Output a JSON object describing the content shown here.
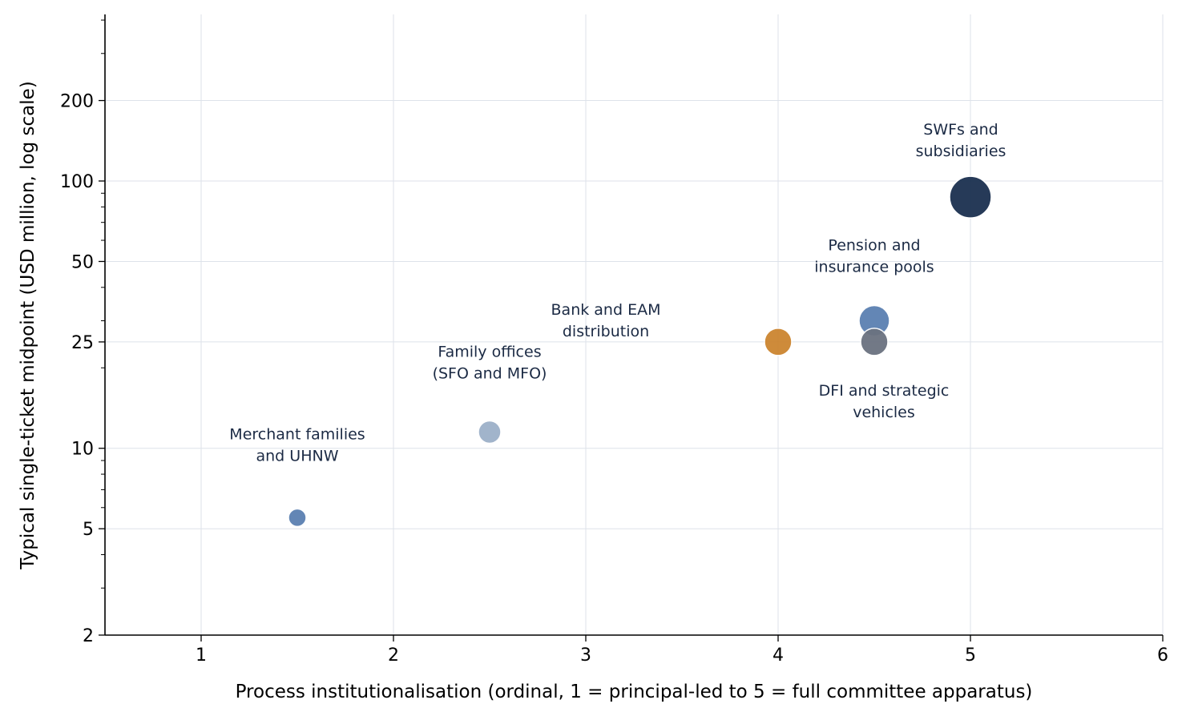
{
  "chart_data": {
    "type": "scatter",
    "title": "",
    "xlabel": "Process institutionalisation (ordinal, 1 = principal-led to 5 = full committee apparatus)",
    "ylabel": "Typical single-ticket midpoint (USD million, log scale)",
    "xlim": [
      0.5,
      6
    ],
    "ylim": [
      2,
      420
    ],
    "yscale": "log",
    "grid": true,
    "x_ticks": [
      "1",
      "2",
      "3",
      "4",
      "5",
      "6"
    ],
    "y_ticks": [
      "2",
      "5",
      "10",
      "25",
      "50",
      "100",
      "200"
    ],
    "legend": "none",
    "points": [
      {
        "label": [
          "Merchant families",
          "and UHNW"
        ],
        "x": 1.5,
        "y": 5.5,
        "size": 1.0,
        "color": "#5b80b2"
      },
      {
        "label": [
          "Family offices",
          "(SFO and MFO)"
        ],
        "x": 2.5,
        "y": 11.5,
        "size": 1.3,
        "color": "#9db0c9"
      },
      {
        "label": [
          "Bank and EAM",
          "distribution"
        ],
        "x": 4.0,
        "y": 25,
        "size": 1.6,
        "color": "#cc8530"
      },
      {
        "label": [
          "Pension and",
          "insurance pools"
        ],
        "x": 4.5,
        "y": 30,
        "size": 1.8,
        "color": "#5b80b2"
      },
      {
        "label": [
          "DFI and strategic",
          "vehicles"
        ],
        "x": 4.5,
        "y": 25,
        "size": 1.6,
        "color": "#6b7280"
      },
      {
        "label": [
          "SWFs and",
          "subsidiaries"
        ],
        "x": 5.0,
        "y": 87,
        "size": 2.5,
        "color": "#1b3050"
      }
    ]
  }
}
